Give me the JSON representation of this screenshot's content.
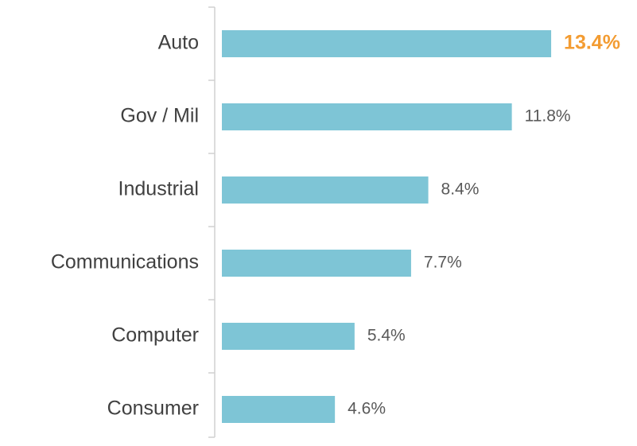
{
  "chart_data": {
    "type": "bar",
    "orientation": "horizontal",
    "categories": [
      "Auto",
      "Gov / Mil",
      "Industrial",
      "Communications",
      "Computer",
      "Consumer"
    ],
    "values": [
      13.4,
      11.8,
      8.4,
      7.7,
      5.4,
      4.6
    ],
    "value_labels": [
      "13.4%",
      "11.8%",
      "8.4%",
      "7.7%",
      "5.4%",
      "4.6%"
    ],
    "color": "#7ec5d6",
    "highlight": {
      "index": 0,
      "color": "#f39c32"
    }
  }
}
